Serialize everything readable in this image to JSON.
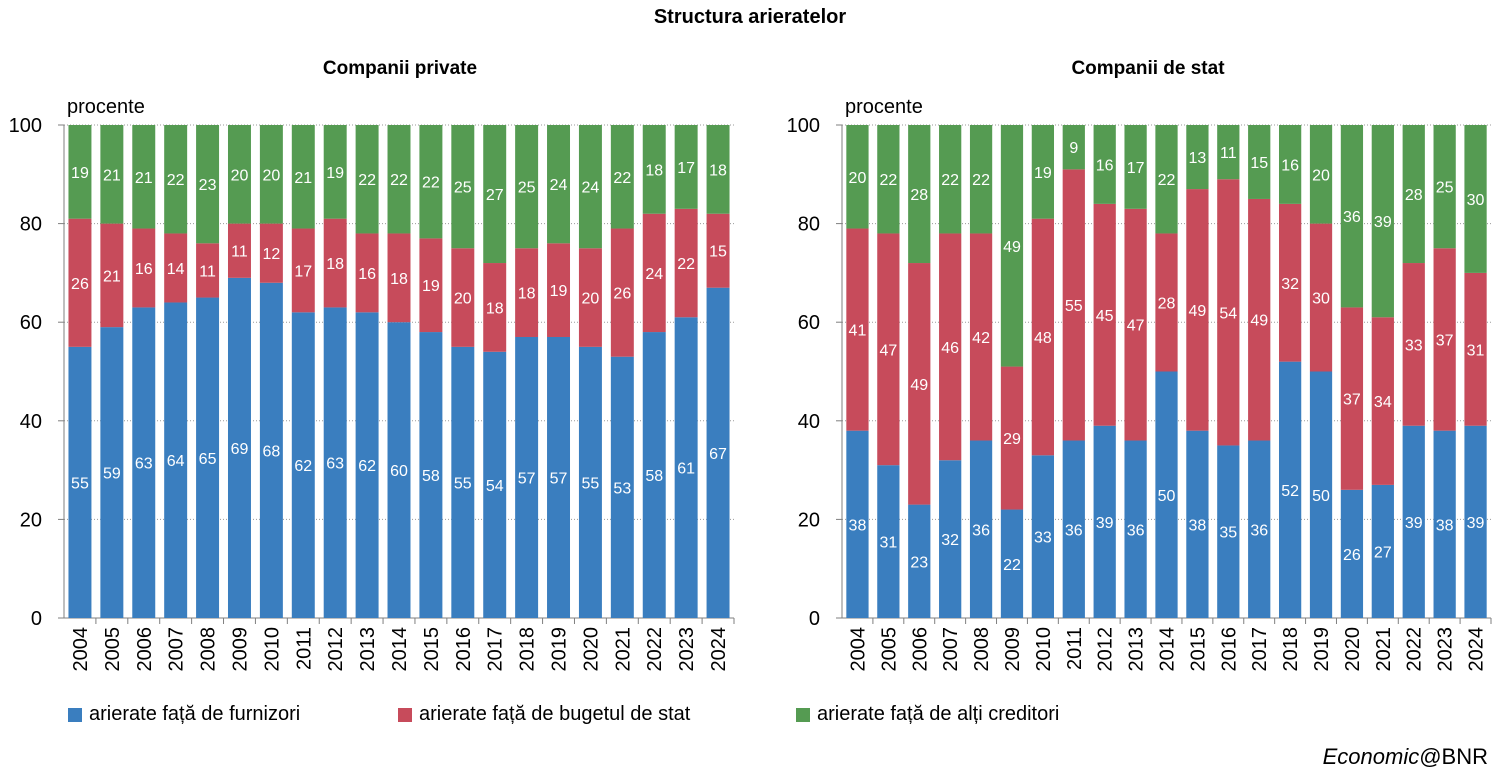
{
  "title": "Structura arieratelor",
  "legend": [
    {
      "label": "arierate față de furnizori",
      "color": "#3A7EBF"
    },
    {
      "label": "arierate față de bugetul de stat",
      "color": "#C74B5B"
    },
    {
      "label": "arierate față de alți creditori",
      "color": "#559B52"
    }
  ],
  "credit": {
    "italic": "Economic",
    "rest": "@BNR"
  },
  "chart_data": [
    {
      "type": "bar",
      "stacked": true,
      "title": "Companii private",
      "ylabel": "procente",
      "ylim": [
        0,
        100
      ],
      "yticks": [
        0,
        20,
        40,
        60,
        80,
        100
      ],
      "grid": true,
      "categories": [
        "2004",
        "2005",
        "2006",
        "2007",
        "2008",
        "2009",
        "2010",
        "2011",
        "2012",
        "2013",
        "2014",
        "2015",
        "2016",
        "2017",
        "2018",
        "2019",
        "2020",
        "2021",
        "2022",
        "2023",
        "2024"
      ],
      "series": [
        {
          "name": "arierate față de furnizori",
          "values": [
            55,
            59,
            63,
            64,
            65,
            69,
            68,
            62,
            63,
            62,
            60,
            58,
            55,
            54,
            57,
            57,
            55,
            53,
            58,
            61,
            67
          ]
        },
        {
          "name": "arierate față de bugetul de stat",
          "values": [
            26,
            21,
            16,
            14,
            11,
            11,
            12,
            17,
            18,
            16,
            18,
            19,
            20,
            18,
            18,
            19,
            20,
            26,
            24,
            22,
            15
          ]
        },
        {
          "name": "arierate față de alți creditori",
          "values": [
            19,
            21,
            21,
            22,
            23,
            20,
            20,
            21,
            19,
            22,
            22,
            22,
            25,
            27,
            25,
            24,
            24,
            22,
            18,
            17,
            18
          ]
        }
      ]
    },
    {
      "type": "bar",
      "stacked": true,
      "title": "Companii de stat",
      "ylabel": "procente",
      "ylim": [
        0,
        100
      ],
      "yticks": [
        0,
        20,
        40,
        60,
        80,
        100
      ],
      "grid": true,
      "categories": [
        "2004",
        "2005",
        "2006",
        "2007",
        "2008",
        "2009",
        "2010",
        "2011",
        "2012",
        "2013",
        "2014",
        "2015",
        "2016",
        "2017",
        "2018",
        "2019",
        "2020",
        "2021",
        "2022",
        "2023",
        "2024"
      ],
      "series": [
        {
          "name": "arierate față de furnizori",
          "values": [
            38,
            31,
            23,
            32,
            36,
            22,
            33,
            36,
            39,
            36,
            50,
            38,
            35,
            36,
            52,
            50,
            26,
            27,
            39,
            38,
            39
          ]
        },
        {
          "name": "arierate față de bugetul de stat",
          "values": [
            41,
            47,
            49,
            46,
            42,
            29,
            48,
            55,
            45,
            47,
            28,
            49,
            54,
            49,
            32,
            30,
            37,
            34,
            33,
            37,
            31
          ]
        },
        {
          "name": "arierate față de alți creditori",
          "values": [
            20,
            22,
            28,
            22,
            22,
            49,
            19,
            9,
            16,
            17,
            22,
            13,
            11,
            15,
            16,
            20,
            36,
            39,
            28,
            25,
            30
          ]
        }
      ]
    }
  ]
}
